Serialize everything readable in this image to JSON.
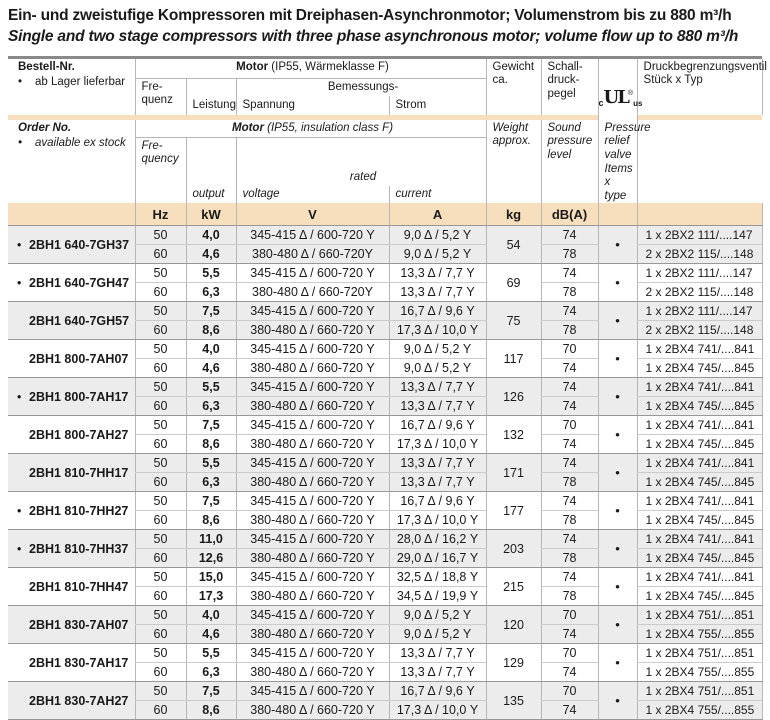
{
  "title": {
    "de": "Ein- und zweistufige Kompressoren mit Dreiphasen-Asynchronmotor; Volumenstrom bis zu 880 m³/h",
    "en": "Single and two stage compressors with three phase asynchronous motor; volume flow up to 880 m³/h"
  },
  "symbols": {
    "bullet": "•"
  },
  "header": {
    "de": {
      "order_label": "Bestell-Nr.",
      "stock_note": "ab Lager lieferbar",
      "motor_bold": "Motor",
      "motor_rest": " (IP55, Wärmeklasse F)",
      "freq_l1": "Fre-",
      "freq_l2": "quenz",
      "output": "Leistung",
      "rated": "Bemessungs-",
      "voltage": "Spannung",
      "current": "Strom",
      "weight_l1": "Gewicht",
      "weight_l2": "ca.",
      "sound_l1": "Schall-",
      "sound_l2": "druck-",
      "sound_l3": "pegel",
      "valve_l1": "Druckbegrenzungsventil",
      "valve_l2": "Stück x Typ"
    },
    "en": {
      "order_label": "Order No.",
      "stock_note": "available ex stock",
      "motor_bold": "Motor",
      "motor_rest": " (IP55, insulation class F)",
      "freq_l1": "Fre-",
      "freq_l2": "quency",
      "output": "output",
      "rated": "rated",
      "voltage": "voltage",
      "current": "current",
      "weight_l1": "Weight",
      "weight_l2": "approx.",
      "sound_l1": "Sound",
      "sound_l2": "pressure",
      "sound_l3": "level",
      "valve_l1": "Pressure relief valve",
      "valve_l2": "Items x type"
    },
    "ul_mark": {
      "c": "c",
      "ul": "UL",
      "reg": "®",
      "us": "us"
    }
  },
  "units": {
    "hz": "Hz",
    "kw": "kW",
    "v": "V",
    "a": "A",
    "kg": "kg",
    "db": "dB(A)"
  },
  "blocks": [
    {
      "model": "2BH1 640-7GH37",
      "ex_stock": true,
      "weight": "54",
      "rows": [
        {
          "hz": "50",
          "kw": "4,0",
          "v": "345-415 Δ / 600-720 Y",
          "a": "9,0 Δ / 5,2 Y",
          "db": "74",
          "valve": "1 x 2BX2 111/....147"
        },
        {
          "hz": "60",
          "kw": "4,6",
          "v": "380-480 Δ / 660-720Y",
          "a": "9,0 Δ / 5,2 Y",
          "db": "78",
          "valve": "2 x 2BX2 115/....148"
        }
      ]
    },
    {
      "model": "2BH1 640-7GH47",
      "ex_stock": true,
      "weight": "69",
      "rows": [
        {
          "hz": "50",
          "kw": "5,5",
          "v": "345-415 Δ / 600-720 Y",
          "a": "13,3 Δ / 7,7 Y",
          "db": "74",
          "valve": "1 x 2BX2 111/....147"
        },
        {
          "hz": "60",
          "kw": "6,3",
          "v": "380-480 Δ / 660-720Y",
          "a": "13,3 Δ / 7,7 Y",
          "db": "78",
          "valve": "2 x 2BX2 115/....148"
        }
      ]
    },
    {
      "model": "2BH1 640-7GH57",
      "ex_stock": false,
      "weight": "75",
      "rows": [
        {
          "hz": "50",
          "kw": "7,5",
          "v": "345-415 Δ / 600-720 Y",
          "a": "16,7 Δ / 9,6 Y",
          "db": "74",
          "valve": "1 x 2BX2 111/....147"
        },
        {
          "hz": "60",
          "kw": "8,6",
          "v": "380-480 Δ / 660-720 Y",
          "a": "17,3 Δ / 10,0 Y",
          "db": "78",
          "valve": "2 x 2BX2 115/....148"
        }
      ]
    },
    {
      "model": "2BH1 800-7AH07",
      "ex_stock": false,
      "weight": "117",
      "rows": [
        {
          "hz": "50",
          "kw": "4,0",
          "v": "345-415 Δ / 600-720 Y",
          "a": "9,0 Δ / 5,2 Y",
          "db": "70",
          "valve": "1 x 2BX4 741/....841"
        },
        {
          "hz": "60",
          "kw": "4,6",
          "v": "380-480 Δ / 660-720 Y",
          "a": "9,0 Δ / 5,2 Y",
          "db": "74",
          "valve": "1 x 2BX4 745/....845"
        }
      ]
    },
    {
      "model": "2BH1 800-7AH17",
      "ex_stock": true,
      "weight": "126",
      "rows": [
        {
          "hz": "50",
          "kw": "5,5",
          "v": "345-415 Δ / 600-720 Y",
          "a": "13,3 Δ / 7,7 Y",
          "db": "74",
          "valve": "1 x 2BX4 741/....841"
        },
        {
          "hz": "60",
          "kw": "6,3",
          "v": "380-480 Δ / 660-720 Y",
          "a": "13,3 Δ / 7,7 Y",
          "db": "74",
          "valve": "1 x 2BX4 745/....845"
        }
      ]
    },
    {
      "model": "2BH1 800-7AH27",
      "ex_stock": false,
      "weight": "132",
      "rows": [
        {
          "hz": "50",
          "kw": "7,5",
          "v": "345-415 Δ / 600-720 Y",
          "a": "16,7 Δ / 9,6 Y",
          "db": "70",
          "valve": "1 x 2BX4 741/....841"
        },
        {
          "hz": "60",
          "kw": "8,6",
          "v": "380-480 Δ / 660-720 Y",
          "a": "17,3 Δ / 10,0 Y",
          "db": "74",
          "valve": "1 x 2BX4 745/....845"
        }
      ]
    },
    {
      "model": "2BH1 810-7HH17",
      "ex_stock": false,
      "weight": "171",
      "rows": [
        {
          "hz": "50",
          "kw": "5,5",
          "v": "345-415 Δ / 600-720 Y",
          "a": "13,3 Δ / 7,7 Y",
          "db": "74",
          "valve": "1 x 2BX4 741/....841"
        },
        {
          "hz": "60",
          "kw": "6,3",
          "v": "380-480 Δ / 660-720 Y",
          "a": "13,3 Δ / 7,7 Y",
          "db": "78",
          "valve": "1 x 2BX4 745/....845"
        }
      ]
    },
    {
      "model": "2BH1 810-7HH27",
      "ex_stock": true,
      "weight": "177",
      "rows": [
        {
          "hz": "50",
          "kw": "7,5",
          "v": "345-415 Δ / 600-720 Y",
          "a": "16,7 Δ / 9,6 Y",
          "db": "74",
          "valve": "1 x 2BX4 741/....841"
        },
        {
          "hz": "60",
          "kw": "8,6",
          "v": "380-480 Δ / 660-720 Y",
          "a": "17,3 Δ / 10,0 Y",
          "db": "78",
          "valve": "1 x 2BX4 745/....845"
        }
      ]
    },
    {
      "model": "2BH1 810-7HH37",
      "ex_stock": true,
      "weight": "203",
      "rows": [
        {
          "hz": "50",
          "kw": "11,0",
          "v": "345-415 Δ / 600-720 Y",
          "a": "28,0 Δ / 16,2 Y",
          "db": "74",
          "valve": "1 x 2BX4 741/....841"
        },
        {
          "hz": "60",
          "kw": "12,6",
          "v": "380-480 Δ / 660-720 Y",
          "a": "29,0 Δ / 16,7 Y",
          "db": "78",
          "valve": "1 x 2BX4 745/....845"
        }
      ]
    },
    {
      "model": "2BH1 810-7HH47",
      "ex_stock": false,
      "weight": "215",
      "rows": [
        {
          "hz": "50",
          "kw": "15,0",
          "v": "345-415 Δ / 600-720 Y",
          "a": "32,5 Δ / 18,8 Y",
          "db": "74",
          "valve": "1 x 2BX4 741/....841"
        },
        {
          "hz": "60",
          "kw": "17,3",
          "v": "380-480 Δ / 660-720 Y",
          "a": "34,5 Δ / 19,9 Y",
          "db": "78",
          "valve": "1 x 2BX4 745/....845"
        }
      ]
    },
    {
      "model": "2BH1 830-7AH07",
      "ex_stock": false,
      "weight": "120",
      "rows": [
        {
          "hz": "50",
          "kw": "4,0",
          "v": "345-415 Δ / 600-720 Y",
          "a": "9,0 Δ / 5,2 Y",
          "db": "70",
          "valve": "1 x 2BX4 751/....851"
        },
        {
          "hz": "60",
          "kw": "4,6",
          "v": "380-480 Δ / 660-720 Y",
          "a": "9,0 Δ / 5,2 Y",
          "db": "74",
          "valve": "1 x 2BX4 755/....855"
        }
      ]
    },
    {
      "model": "2BH1 830-7AH17",
      "ex_stock": false,
      "weight": "129",
      "rows": [
        {
          "hz": "50",
          "kw": "5,5",
          "v": "345-415 Δ / 600-720 Y",
          "a": "13,3 Δ / 7,7 Y",
          "db": "70",
          "valve": "1 x 2BX4 751/....851"
        },
        {
          "hz": "60",
          "kw": "6,3",
          "v": "380-480 Δ / 660-720 Y",
          "a": "13,3 Δ / 7,7 Y",
          "db": "74",
          "valve": "1 x 2BX4 755/....855"
        }
      ]
    },
    {
      "model": "2BH1 830-7AH27",
      "ex_stock": false,
      "weight": "135",
      "rows": [
        {
          "hz": "50",
          "kw": "7,5",
          "v": "345-415 Δ / 600-720 Y",
          "a": "16,7 Δ / 9,6 Y",
          "db": "70",
          "valve": "1 x 2BX4 751/....851"
        },
        {
          "hz": "60",
          "kw": "8,6",
          "v": "380-480 Δ / 660-720 Y",
          "a": "17,3 Δ / 10,0 Y",
          "db": "74",
          "valve": "1 x 2BX4 755/....855"
        }
      ]
    }
  ]
}
